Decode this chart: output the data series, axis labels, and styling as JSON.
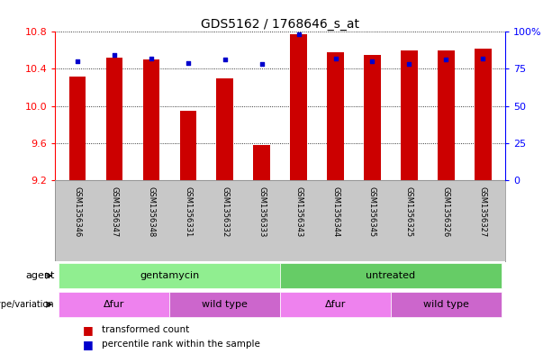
{
  "title": "GDS5162 / 1768646_s_at",
  "samples": [
    "GSM1356346",
    "GSM1356347",
    "GSM1356348",
    "GSM1356331",
    "GSM1356332",
    "GSM1356333",
    "GSM1356343",
    "GSM1356344",
    "GSM1356345",
    "GSM1356325",
    "GSM1356326",
    "GSM1356327"
  ],
  "transformed_count": [
    10.32,
    10.52,
    10.5,
    9.95,
    10.3,
    9.58,
    10.77,
    10.58,
    10.55,
    10.6,
    10.6,
    10.62
  ],
  "percentile_rank": [
    80,
    84,
    82,
    79,
    81,
    78,
    98,
    82,
    80,
    78,
    81,
    82
  ],
  "y_min": 9.2,
  "y_max": 10.8,
  "y_ticks_red": [
    9.2,
    9.6,
    10.0,
    10.4,
    10.8
  ],
  "y_ticks_blue": [
    0,
    25,
    50,
    75,
    100
  ],
  "agent_configs": [
    {
      "label": "gentamycin",
      "start": 0,
      "end": 5,
      "color": "#90EE90"
    },
    {
      "label": "untreated",
      "start": 6,
      "end": 11,
      "color": "#66CC66"
    }
  ],
  "genotype_configs": [
    {
      "label": "Δfur",
      "start": 0,
      "end": 2,
      "color": "#EE82EE"
    },
    {
      "label": "wild type",
      "start": 3,
      "end": 5,
      "color": "#CC66CC"
    },
    {
      "label": "Δfur",
      "start": 6,
      "end": 8,
      "color": "#EE82EE"
    },
    {
      "label": "wild type",
      "start": 9,
      "end": 11,
      "color": "#CC66CC"
    }
  ],
  "bar_color": "#CC0000",
  "dot_color": "#0000CC",
  "bar_width": 0.45,
  "background_sample": "#C8C8C8",
  "title_fontsize": 10
}
